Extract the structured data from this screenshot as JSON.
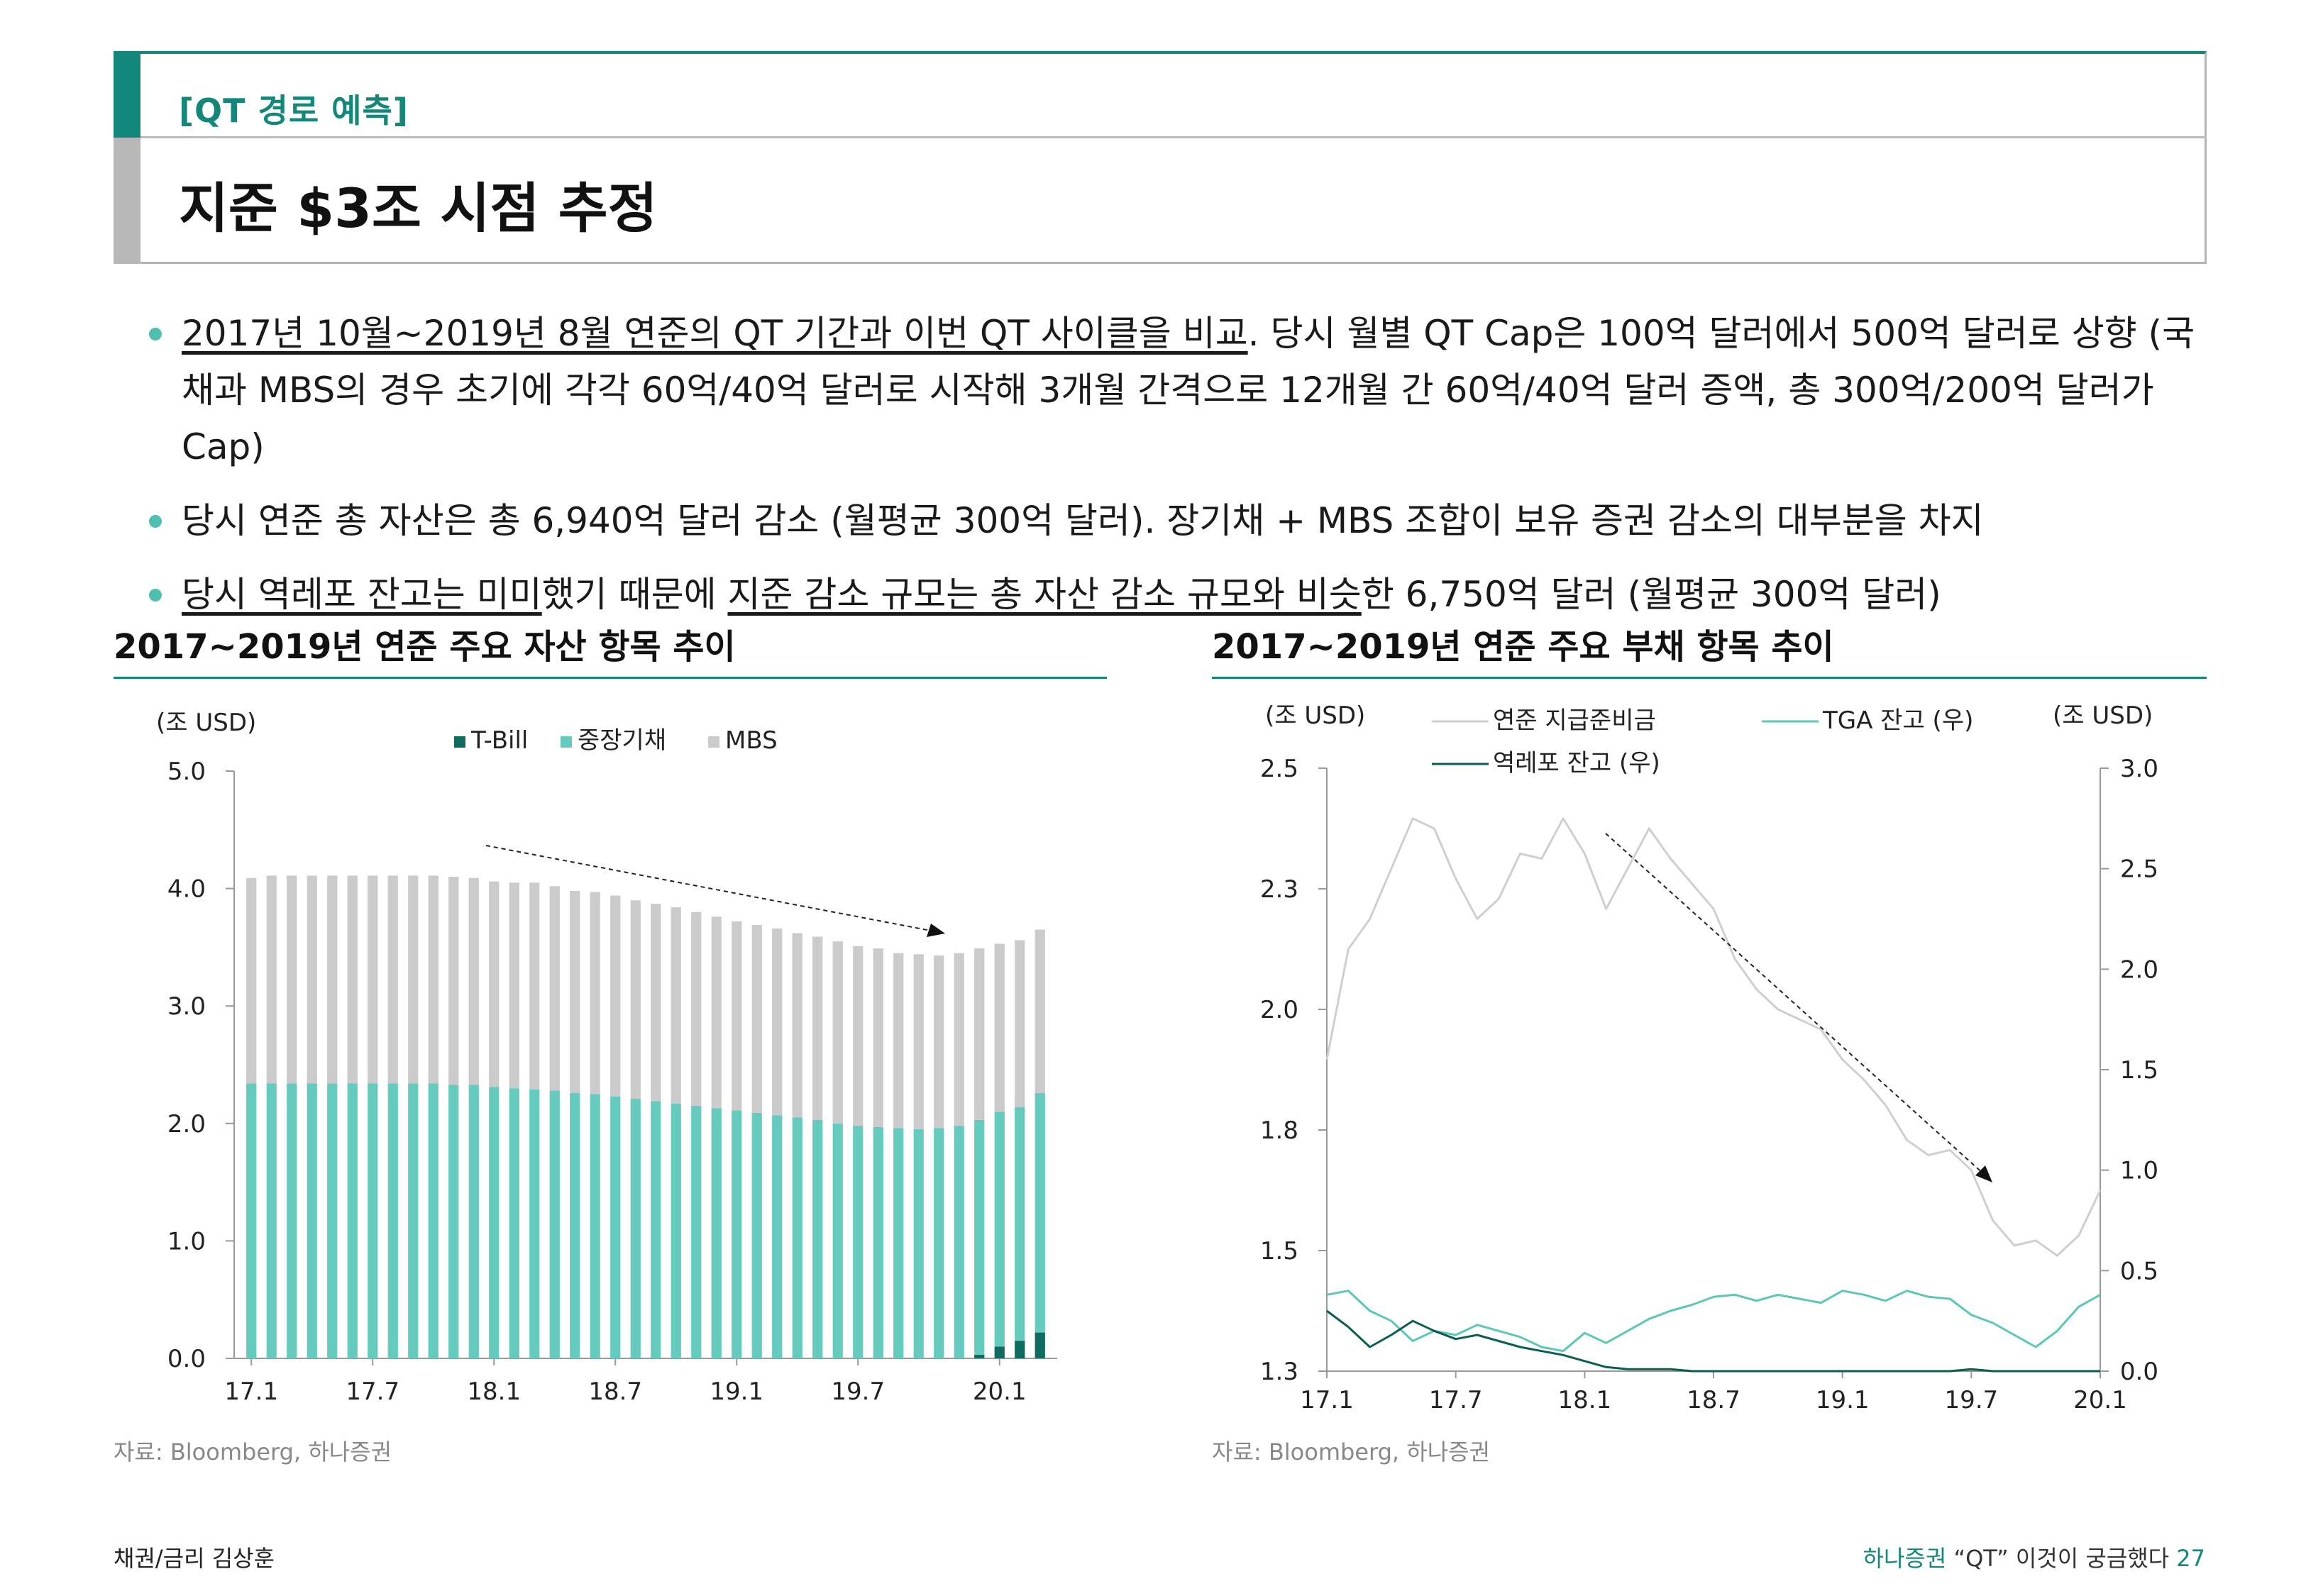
{
  "header": {
    "subtitle": "[QT 경로 예측]",
    "title": "지준 $3조 시점 추정"
  },
  "bullets": [
    {
      "part1_u": "2017년 10월~2019년 8월 연준의 QT 기간과 이번 QT 사이클을 비교",
      "part2": ". 당시 월별 QT Cap은 100억 달러에서 500억 달러로 상향 (국채과 MBS의 경우 초기에 각각 60억/40억 달러로 시작해 3개월 간격으로 12개월 간 60억/40억 달러 증액, 총 300억/200억 달러가 Cap)"
    },
    {
      "text": "당시 연준 총 자산은 총 6,940억 달러 감소 (월평균 300억 달러). 장기채 + MBS 조합이 보유 증권 감소의 대부분을 차지"
    },
    {
      "part1_u": "당시 역레포 잔고는 미미",
      "part2": "했기 때문에 ",
      "part3_u": "지준 감소 규모는 총 자산 감소 규모와 비슷",
      "part4": "한 6,750억 달러 (월평균 300억 달러)"
    }
  ],
  "left_chart": {
    "title": "2017~2019년 연준 주요 자산 항목 추이",
    "unit": "(조 USD)",
    "source": "자료: Bloomberg, 하나증권"
  },
  "right_chart": {
    "title": "2017~2019년 연준 주요 부채 항목 추이",
    "unit_left": "(조 USD)",
    "unit_right": "(조 USD)",
    "source": "자료: Bloomberg, 하나증권"
  },
  "colors": {
    "teal_dark": "#0f6b5e",
    "teal_light": "#66cbbf",
    "gray_bar": "#cbcbcb",
    "accent": "#12877a"
  },
  "chart_data": [
    {
      "type": "bar",
      "stacked": true,
      "ylim": [
        0,
        5
      ],
      "yticks": [
        "0.0",
        "1.0",
        "2.0",
        "3.0",
        "4.0",
        "5.0"
      ],
      "xticks": [
        "17.1",
        "17.7",
        "18.1",
        "18.7",
        "19.1",
        "19.7",
        "20.1"
      ],
      "legend": [
        "T-Bill",
        "중장기채",
        "MBS"
      ],
      "series": [
        {
          "name": "T-Bill",
          "values": [
            0,
            0,
            0,
            0,
            0,
            0,
            0,
            0,
            0,
            0,
            0,
            0,
            0,
            0,
            0,
            0,
            0,
            0,
            0,
            0,
            0,
            0,
            0,
            0,
            0,
            0,
            0,
            0,
            0,
            0,
            0,
            0,
            0,
            0,
            0,
            0,
            0.03,
            0.1,
            0.15,
            0.22
          ]
        },
        {
          "name": "중장기채",
          "values": [
            2.34,
            2.34,
            2.34,
            2.34,
            2.34,
            2.34,
            2.34,
            2.34,
            2.34,
            2.34,
            2.33,
            2.33,
            2.31,
            2.3,
            2.29,
            2.28,
            2.26,
            2.25,
            2.23,
            2.21,
            2.19,
            2.17,
            2.15,
            2.13,
            2.11,
            2.09,
            2.07,
            2.05,
            2.03,
            2.0,
            1.98,
            1.97,
            1.96,
            1.95,
            1.96,
            1.98,
            2.0,
            2.0,
            1.99,
            2.04
          ]
        },
        {
          "name": "MBS",
          "values": [
            1.75,
            1.77,
            1.77,
            1.77,
            1.77,
            1.77,
            1.77,
            1.77,
            1.77,
            1.77,
            1.77,
            1.76,
            1.75,
            1.75,
            1.76,
            1.74,
            1.72,
            1.72,
            1.71,
            1.69,
            1.68,
            1.67,
            1.65,
            1.63,
            1.61,
            1.6,
            1.59,
            1.57,
            1.56,
            1.55,
            1.53,
            1.52,
            1.49,
            1.49,
            1.47,
            1.47,
            1.46,
            1.43,
            1.42,
            1.39
          ]
        }
      ]
    },
    {
      "type": "line",
      "ylim_left": [
        1.3,
        2.5
      ],
      "yticks_left": [
        "1.3",
        "1.5",
        "1.8",
        "2.0",
        "2.3",
        "2.5"
      ],
      "ylim_right": [
        0,
        3
      ],
      "yticks_right": [
        "0.0",
        "0.5",
        "1.0",
        "1.5",
        "2.0",
        "2.5",
        "3.0"
      ],
      "xticks": [
        "17.1",
        "17.7",
        "18.1",
        "18.7",
        "19.1",
        "19.7",
        "20.1"
      ],
      "series": [
        {
          "name": "연준 지급준비금",
          "legend": "연준 지급준비금",
          "axis": "left",
          "values": [
            1.92,
            2.14,
            2.2,
            2.3,
            2.4,
            2.38,
            2.28,
            2.2,
            2.24,
            2.33,
            2.32,
            2.4,
            2.33,
            2.22,
            2.3,
            2.38,
            2.32,
            2.27,
            2.22,
            2.12,
            2.06,
            2.02,
            2.0,
            1.98,
            1.92,
            1.88,
            1.83,
            1.76,
            1.73,
            1.74,
            1.7,
            1.6,
            1.55,
            1.56,
            1.53,
            1.57,
            1.66
          ]
        },
        {
          "name": "TGA 잔고 (우)",
          "legend": "TGA 잔고 (우)",
          "axis": "right",
          "values": [
            0.38,
            0.4,
            0.3,
            0.25,
            0.15,
            0.2,
            0.18,
            0.23,
            0.2,
            0.17,
            0.12,
            0.1,
            0.19,
            0.14,
            0.2,
            0.26,
            0.3,
            0.33,
            0.37,
            0.38,
            0.35,
            0.38,
            0.36,
            0.34,
            0.4,
            0.38,
            0.35,
            0.4,
            0.37,
            0.36,
            0.28,
            0.24,
            0.18,
            0.12,
            0.2,
            0.32,
            0.38
          ]
        },
        {
          "name": "역레포 잔고 (우)",
          "legend": "역레포 잔고 (우)",
          "axis": "right",
          "values": [
            0.3,
            0.22,
            0.12,
            0.18,
            0.25,
            0.2,
            0.16,
            0.18,
            0.15,
            0.12,
            0.1,
            0.08,
            0.05,
            0.02,
            0.01,
            0.01,
            0.01,
            0.0,
            0.0,
            0.0,
            0.0,
            0.0,
            0.0,
            0.0,
            0.0,
            0.0,
            0.0,
            0.0,
            0.0,
            0.0,
            0.01,
            0.0,
            0.0,
            0.0,
            0.0,
            0.0,
            0.0
          ]
        }
      ]
    }
  ],
  "footer": {
    "left": "채권/금리 김상훈",
    "brand": "하나증권",
    "report": "“QT” 이것이 궁금했다",
    "page": "27"
  }
}
